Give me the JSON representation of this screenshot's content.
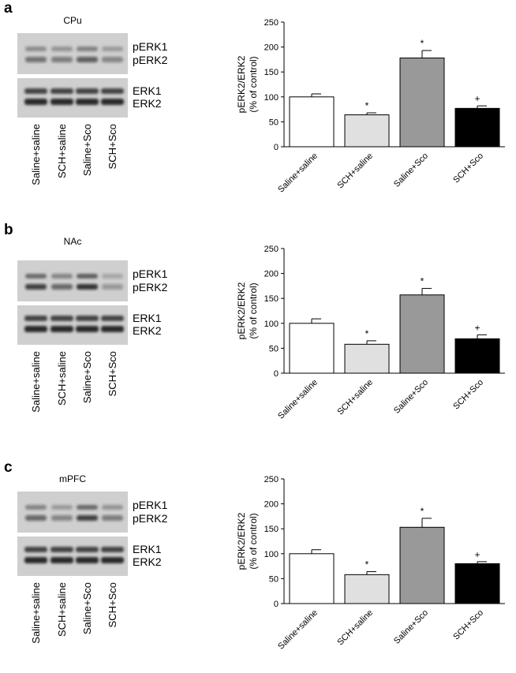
{
  "panels": [
    {
      "label": "a",
      "region": "CPu",
      "bands_top": [
        "pERK1",
        "pERK2"
      ],
      "bands_bottom": [
        "ERK1",
        "ERK2"
      ],
      "lanes": [
        "Saline+saline",
        "SCH+saline",
        "Saline+Sco",
        "SCH+Sco"
      ]
    },
    {
      "label": "b",
      "region": "NAc",
      "bands_top": [
        "pERK1",
        "pERK2"
      ],
      "bands_bottom": [
        "ERK1",
        "ERK2"
      ],
      "lanes": [
        "Saline+saline",
        "SCH+saline",
        "Saline+Sco",
        "SCH+Sco"
      ]
    },
    {
      "label": "c",
      "region": "mPFC",
      "bands_top": [
        "pERK1",
        "pERK2"
      ],
      "bands_bottom": [
        "ERK1",
        "ERK2"
      ],
      "lanes": [
        "Saline+saline",
        "SCH+saline",
        "Saline+Sco",
        "SCH+Sco"
      ]
    }
  ],
  "chart_data": [
    {
      "type": "bar",
      "ylabel": [
        "pERK2/ERK2",
        "(% of control)"
      ],
      "categories": [
        "Saline+saline",
        "SCH+saline",
        "Saline+Sco",
        "SCH+Sco"
      ],
      "values": [
        100,
        64,
        178,
        77
      ],
      "errors": [
        6,
        4,
        15,
        5
      ],
      "colors": [
        "#ffffff",
        "#e0e0e0",
        "#999999",
        "#000000"
      ],
      "annotations": [
        null,
        "*",
        "*",
        "+"
      ],
      "ylim": [
        0,
        250
      ],
      "yticks": [
        0,
        50,
        100,
        150,
        200,
        250
      ]
    },
    {
      "type": "bar",
      "ylabel": [
        "pERK2/ERK2",
        "(% of control)"
      ],
      "categories": [
        "Saline+saline",
        "SCH+saline",
        "Saline+Sco",
        "SCH+Sco"
      ],
      "values": [
        100,
        58,
        157,
        69
      ],
      "errors": [
        9,
        7,
        13,
        8
      ],
      "colors": [
        "#ffffff",
        "#e0e0e0",
        "#999999",
        "#000000"
      ],
      "annotations": [
        null,
        "*",
        "*",
        "+"
      ],
      "ylim": [
        0,
        250
      ],
      "yticks": [
        0,
        50,
        100,
        150,
        200,
        250
      ]
    },
    {
      "type": "bar",
      "ylabel": [
        "pERK2/ERK2",
        "(% of control)"
      ],
      "categories": [
        "Saline+saline",
        "SCH+saline",
        "Saline+Sco",
        "SCH+Sco"
      ],
      "values": [
        100,
        58,
        153,
        80
      ],
      "errors": [
        8,
        6,
        18,
        4
      ],
      "colors": [
        "#ffffff",
        "#e0e0e0",
        "#999999",
        "#000000"
      ],
      "annotations": [
        null,
        "*",
        "*",
        "+"
      ],
      "ylim": [
        0,
        250
      ],
      "yticks": [
        0,
        50,
        100,
        150,
        200,
        250
      ]
    }
  ]
}
